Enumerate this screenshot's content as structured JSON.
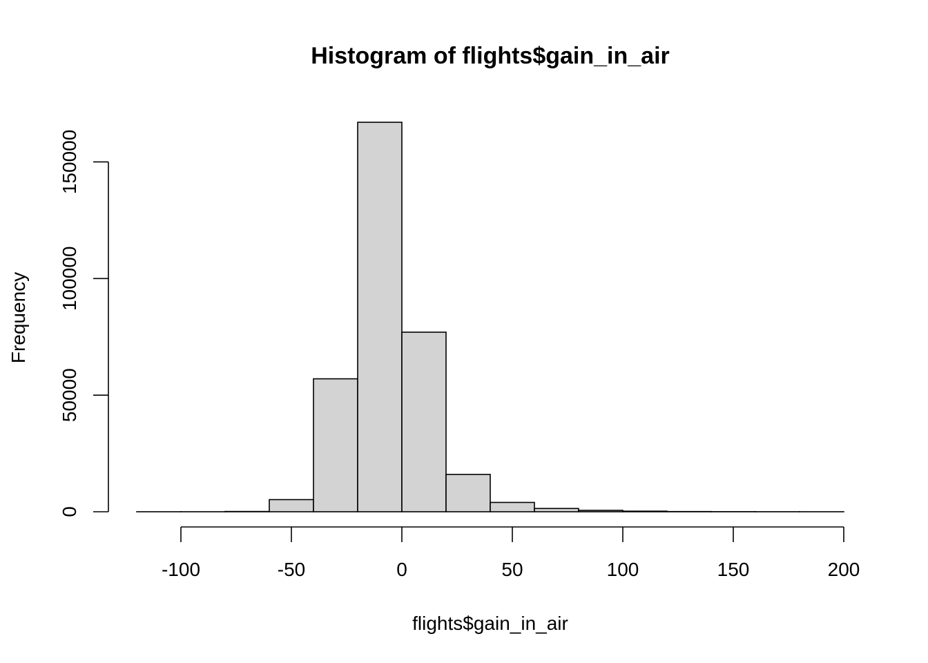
{
  "chart_data": {
    "type": "bar",
    "title": "Histogram of flights$gain_in_air",
    "xlabel": "flights$gain_in_air",
    "ylabel": "Frequency",
    "bins": [
      {
        "from": -120,
        "to": -100,
        "count": 3
      },
      {
        "from": -100,
        "to": -80,
        "count": 8
      },
      {
        "from": -80,
        "to": -60,
        "count": 120
      },
      {
        "from": -60,
        "to": -40,
        "count": 5200
      },
      {
        "from": -40,
        "to": -20,
        "count": 57000
      },
      {
        "from": -20,
        "to": 0,
        "count": 167000
      },
      {
        "from": 0,
        "to": 20,
        "count": 77000
      },
      {
        "from": 20,
        "to": 40,
        "count": 16000
      },
      {
        "from": 40,
        "to": 60,
        "count": 4000
      },
      {
        "from": 60,
        "to": 80,
        "count": 1400
      },
      {
        "from": 80,
        "to": 100,
        "count": 600
      },
      {
        "from": 100,
        "to": 120,
        "count": 250
      },
      {
        "from": 120,
        "to": 140,
        "count": 90
      },
      {
        "from": 140,
        "to": 160,
        "count": 40
      },
      {
        "from": 160,
        "to": 180,
        "count": 15
      },
      {
        "from": 180,
        "to": 200,
        "count": 6
      }
    ],
    "x_ticks": [
      -100,
      -50,
      0,
      50,
      100,
      150,
      200
    ],
    "y_ticks": [
      0,
      50000,
      100000,
      150000
    ],
    "x_tick_labels": [
      "-100",
      "-50",
      "0",
      "50",
      "100",
      "150",
      "200"
    ],
    "y_tick_labels": [
      "0",
      "50000",
      "100000",
      "150000"
    ],
    "xlim": [
      -120,
      200
    ],
    "ylim": [
      0,
      167000
    ],
    "colors": {
      "bar_fill": "#d3d3d3",
      "bar_stroke": "#000000"
    },
    "grid": false,
    "legend": "none"
  }
}
